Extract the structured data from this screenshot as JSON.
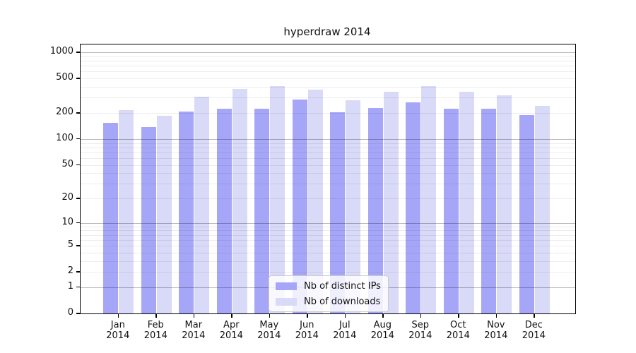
{
  "title": "hyperdraw 2014",
  "colors": {
    "distinct_ips": "#a6a6f8",
    "downloads": "#d9d9f8",
    "spine": "#000000",
    "major_grid": "rgba(0,0,0,0.27)",
    "minor_grid": "rgba(0,0,0,0.07)"
  },
  "x_axis": {
    "months": [
      "Jan",
      "Feb",
      "Mar",
      "Apr",
      "May",
      "Jun",
      "Jul",
      "Aug",
      "Sep",
      "Oct",
      "Nov",
      "Dec"
    ],
    "year": "2014"
  },
  "y_axis": {
    "tick_values": [
      0,
      1,
      2,
      5,
      10,
      20,
      50,
      100,
      200,
      500,
      1000
    ],
    "scale": "log10(1+x)"
  },
  "legend": {
    "items": [
      "Nb of distinct IPs",
      "Nb of downloads"
    ]
  },
  "chart_data": {
    "type": "bar",
    "title": "hyperdraw 2014",
    "categories": [
      "Jan 2014",
      "Feb 2014",
      "Mar 2014",
      "Apr 2014",
      "May 2014",
      "Jun 2014",
      "Jul 2014",
      "Aug 2014",
      "Sep 2014",
      "Oct 2014",
      "Nov 2014",
      "Dec 2014"
    ],
    "series": [
      {
        "name": "Nb of distinct IPs",
        "key": "distinct-ips",
        "color": "#a6a6f8",
        "values": [
          154,
          138,
          209,
          226,
          226,
          286,
          204,
          230,
          263,
          226,
          225,
          191
        ]
      },
      {
        "name": "Nb of downloads",
        "key": "downloads",
        "color": "#d9d9f8",
        "values": [
          217,
          185,
          308,
          379,
          411,
          372,
          280,
          350,
          406,
          352,
          319,
          241
        ]
      }
    ],
    "xlabel": "",
    "ylabel": "",
    "y_scale": "log1p",
    "y_ticks": [
      0,
      1,
      2,
      5,
      10,
      20,
      50,
      100,
      200,
      500,
      1000
    ],
    "ylim_top": 1230,
    "grid": true,
    "legend_position": "lower center"
  }
}
